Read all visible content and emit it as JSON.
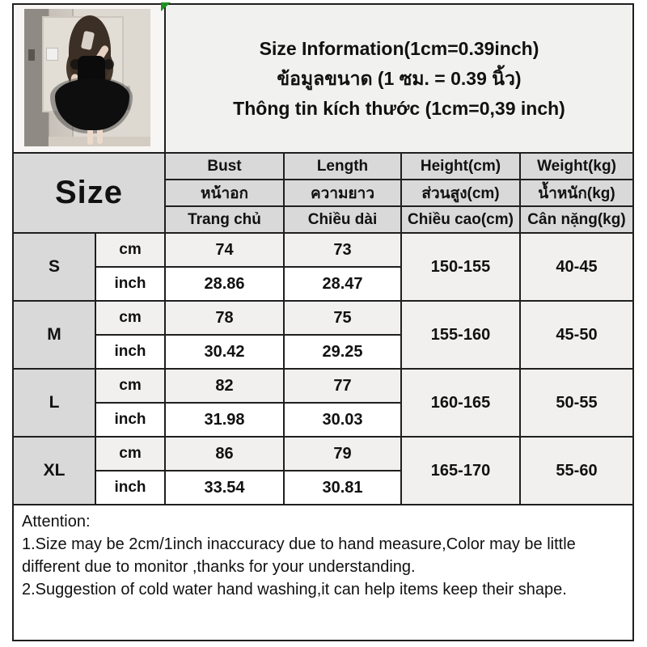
{
  "title": {
    "en": "Size Information(1cm=0.39inch)",
    "th": "ข้อมูลขนาด (1 ซม. = 0.39 นิ้ว)",
    "vi": "Thông tin kích thước (1cm=0,39 inch)"
  },
  "table": {
    "size_label": "Size",
    "unit_cm": "cm",
    "unit_inch": "inch",
    "headers": {
      "en": [
        "Bust",
        "Length",
        "Height(cm)",
        "Weight(kg)"
      ],
      "th": [
        "หน้าอก",
        "ความยาว",
        "ส่วนสูง(cm)",
        "น้ำหนัก(kg)"
      ],
      "vi": [
        "Trang chủ",
        "Chiều dài",
        "Chiều cao(cm)",
        "Cân nặng(kg)"
      ]
    },
    "rows": [
      {
        "size": "S",
        "bust_cm": "74",
        "length_cm": "73",
        "bust_inch": "28.86",
        "length_inch": "28.47",
        "height": "150-155",
        "weight": "40-45"
      },
      {
        "size": "M",
        "bust_cm": "78",
        "length_cm": "75",
        "bust_inch": "30.42",
        "length_inch": "29.25",
        "height": "155-160",
        "weight": "45-50"
      },
      {
        "size": "L",
        "bust_cm": "82",
        "length_cm": "77",
        "bust_inch": "31.98",
        "length_inch": "30.03",
        "height": "160-165",
        "weight": "50-55"
      },
      {
        "size": "XL",
        "bust_cm": "86",
        "length_cm": "79",
        "bust_inch": "33.54",
        "length_inch": "30.81",
        "height": "165-170",
        "weight": "55-60"
      }
    ]
  },
  "attention": {
    "heading": "Attention:",
    "item1": "1.Size may be 2cm/1inch inaccuracy due to hand measure,Color may be little different due to monitor ,thanks for your understanding.",
    "item2": "2.Suggestion of cold water hand washing,it can help items keep their shape."
  },
  "colors": {
    "table_border": "#1f1f1f",
    "header_cell_bg": "#d9d9d9",
    "tinted_row_bg": "#f1f0ef",
    "flag_green": "#1d9121"
  }
}
